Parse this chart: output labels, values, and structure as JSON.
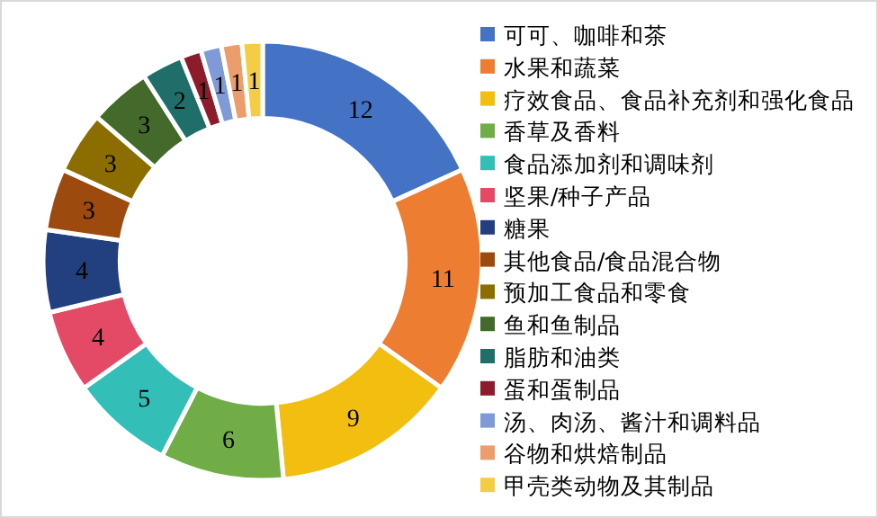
{
  "chart_data": {
    "type": "donut",
    "categories": [
      "可可、咖啡和茶",
      "水果和蔬菜",
      "疗效食品、食品补充剂和强化食品",
      "香草及香料",
      "食品添加剂和调味剂",
      "坚果/种子产品",
      "糖果",
      "其他食品/食品混合物",
      "预加工食品和零食",
      "鱼和鱼制品",
      "脂肪和油类",
      "蛋和蛋制品",
      "汤、肉汤、酱汁和调料品",
      "谷物和烘焙制品",
      "甲壳类动物及其制品"
    ],
    "values": [
      12,
      11,
      9,
      6,
      5,
      4,
      4,
      3,
      3,
      3,
      2,
      1,
      1,
      1,
      1
    ],
    "colors": [
      "#4472c4",
      "#ed7d31",
      "#f2be0f",
      "#70ad47",
      "#33beb8",
      "#e44a66",
      "#22407f",
      "#9c4a0e",
      "#8c6d00",
      "#436a2b",
      "#1f6e69",
      "#8c1c2c",
      "#7e9bd8",
      "#eb9e6c",
      "#f4cd45"
    ],
    "data_labels": true,
    "legend": "right"
  }
}
